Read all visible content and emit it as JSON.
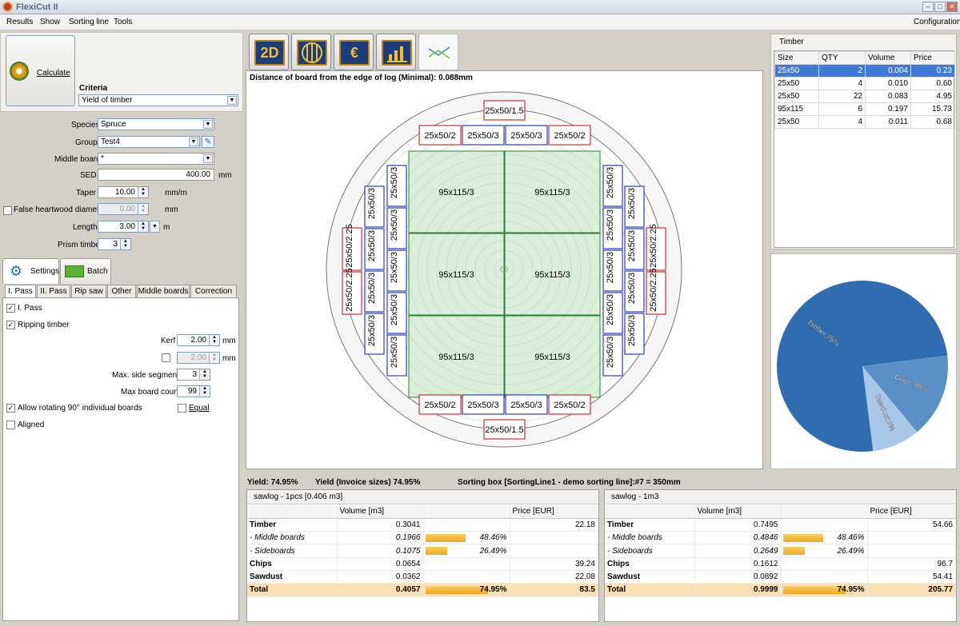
{
  "window": {
    "title": "FlexiCut II"
  },
  "menu": {
    "items": [
      "Results",
      "Show",
      "Sorting line",
      "Tools"
    ],
    "configuration": "Configuration"
  },
  "calculate": {
    "label": "Calculate"
  },
  "criteria": {
    "label": "Criteria",
    "value": "Yield of timber"
  },
  "form": {
    "species": {
      "label": "Species",
      "value": "Spruce"
    },
    "group": {
      "label": "Group",
      "value": "Test4"
    },
    "middle_board": {
      "label": "Middle board",
      "value": "*"
    },
    "sed": {
      "label": "SED",
      "value": "400.00",
      "unit": "mm"
    },
    "taper": {
      "label": "Taper",
      "value": "10.00",
      "unit": "mm/m"
    },
    "false_heartwood": {
      "label": "False heartwood diameter",
      "value": "0.00",
      "unit": "mm"
    },
    "length": {
      "label": "Length",
      "value": "3.00",
      "unit": "m"
    },
    "prism_timber": {
      "label": "Prism timber",
      "value": "3"
    }
  },
  "big_tabs": {
    "settings": "Settings",
    "batch": "Batch"
  },
  "small_tabs": [
    "I. Pass",
    "II. Pass",
    "Rip saw",
    "Other",
    "Middle boards",
    "Correction"
  ],
  "settings": {
    "pass_label": "I. Pass",
    "ripping_label": "Ripping timber",
    "kerf_label": "Kerf",
    "kerf_value": "2.00",
    "kerf_unit": "mm",
    "kerf2_value": "2.00",
    "kerf2_unit": "mm",
    "max_side_label": "Max. side segments",
    "max_side_value": "3",
    "max_board_label": "Max board count",
    "max_board_value": "99",
    "allow_rotating_label": "Allow rotating 90° individual boards",
    "equal_label": "Equal",
    "aligned_label": "Aligned"
  },
  "toolbar": {
    "btn_2d": "2D"
  },
  "canvas": {
    "caption": "Distance of board from the edge of log (Minimal): 0.088mm",
    "labels": {
      "top_small": "25x50/1.5",
      "bottom_small": "25x50/1.5",
      "side_outer": "25x50/2",
      "side_mid": "25x50/3",
      "center": "95x115/3",
      "side_vert_outer": "25x50/2.25"
    }
  },
  "timber_grid": {
    "title": "Timber",
    "columns": [
      "Size",
      "QTY",
      "Volume",
      "Price"
    ],
    "rows": [
      [
        "25x50",
        "2",
        "0.004",
        "0.23"
      ],
      [
        "25x50",
        "4",
        "0.010",
        "0.60"
      ],
      [
        "25x50",
        "22",
        "0.083",
        "4.95"
      ],
      [
        "95x115",
        "6",
        "0.197",
        "15.73"
      ],
      [
        "25x50",
        "4",
        "0.011",
        "0.68"
      ]
    ]
  },
  "pie": {
    "slices": [
      {
        "label": "Timber:75%",
        "value": 75,
        "color": "#2f6db0"
      },
      {
        "label": "Chips:16%",
        "value": 16,
        "color": "#5b8fc8"
      },
      {
        "label": "Sawdust:9%",
        "value": 9,
        "color": "#a9c7e6"
      }
    ]
  },
  "yield_bar": {
    "yield": "Yield:  74.95%",
    "invoice": "Yield (Invoice sizes)  74.95%",
    "sorting": "Sorting box [SortingLine1 - demo sorting line]:#7 = 350mm"
  },
  "result_left": {
    "title": "sawlog - 1pcs [0.406 m3]",
    "col_volume": "Volume [m3]",
    "col_price": "Price [EUR]",
    "rows": [
      {
        "name": "Timber",
        "vol": "0.3041",
        "pct": "",
        "bar": 0,
        "price": "22.18",
        "style": "bold"
      },
      {
        "name": "- Middle boards",
        "vol": "0.1966",
        "pct": "48.46%",
        "bar": 48.46,
        "price": "",
        "style": "italic"
      },
      {
        "name": "- Sideboards",
        "vol": "0.1075",
        "pct": "26.49%",
        "bar": 26.49,
        "price": "",
        "style": "italic"
      },
      {
        "name": "Chips",
        "vol": "0.0654",
        "pct": "",
        "bar": 0,
        "price": "39.24",
        "style": "bold"
      },
      {
        "name": "Sawdust",
        "vol": "0.0362",
        "pct": "",
        "bar": 0,
        "price": "22.08",
        "style": "bold"
      },
      {
        "name": "Total",
        "vol": "0.4057",
        "pct": "74.95%",
        "bar": 74.95,
        "price": "83.5",
        "style": "total"
      }
    ]
  },
  "result_right": {
    "title": "sawlog - 1m3",
    "col_volume": "Volume [m3]",
    "col_price": "Price [EUR]",
    "rows": [
      {
        "name": "Timber",
        "vol": "0.7495",
        "pct": "",
        "bar": 0,
        "price": "54.66",
        "style": "bold"
      },
      {
        "name": "- Middle boards",
        "vol": "0.4846",
        "pct": "48.46%",
        "bar": 48.46,
        "price": "",
        "style": "italic"
      },
      {
        "name": "- Sideboards",
        "vol": "0.2649",
        "pct": "26.49%",
        "bar": 26.49,
        "price": "",
        "style": "italic"
      },
      {
        "name": "Chips",
        "vol": "0.1612",
        "pct": "",
        "bar": 0,
        "price": "96.7",
        "style": "bold"
      },
      {
        "name": "Sawdust",
        "vol": "0.0892",
        "pct": "",
        "bar": 0,
        "price": "54.41",
        "style": "bold"
      },
      {
        "name": "Total",
        "vol": "0.9999",
        "pct": "74.95%",
        "bar": 74.95,
        "price": "205.77",
        "style": "total"
      }
    ]
  }
}
